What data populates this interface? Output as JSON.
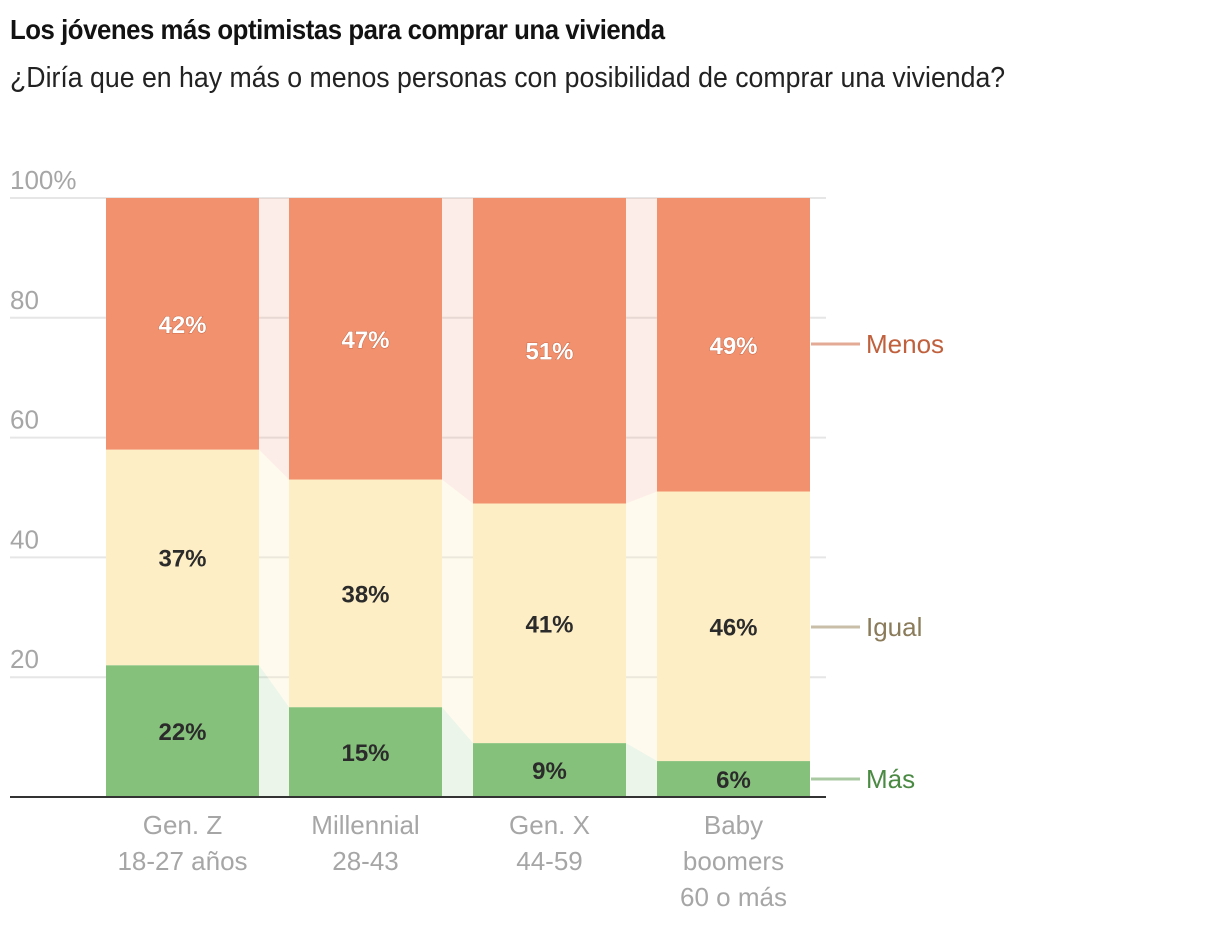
{
  "header": {
    "title": "Los jóvenes más optimistas para comprar una vivienda",
    "subtitle": "¿Diría que en hay más o menos personas con posibilidad de comprar una vivienda?"
  },
  "chart_data": {
    "type": "bar",
    "stacked": true,
    "title": "Los jóvenes más optimistas para comprar una vivienda",
    "subtitle": "¿Diría que en hay más o menos personas con posibilidad de comprar una vivienda?",
    "xlabel": "",
    "ylabel": "",
    "ylim": [
      0,
      100
    ],
    "yticks": [
      0,
      20,
      40,
      60,
      80,
      100
    ],
    "ytick_labels": [
      "",
      "20",
      "40",
      "60",
      "80",
      "100%"
    ],
    "grid": true,
    "legend_position": "right",
    "categories": [
      [
        "Gen. Z",
        "18-27 años"
      ],
      [
        "Millennial",
        "28-43"
      ],
      [
        "Gen. X",
        "44-59"
      ],
      [
        "Baby",
        "boomers",
        "60 o más"
      ]
    ],
    "series": [
      {
        "name": "Más",
        "color": "#85c17b",
        "label_color": "#4a8a43",
        "values": [
          22,
          15,
          9,
          6
        ],
        "labels": [
          "22%",
          "15%",
          "9%",
          "6%"
        ]
      },
      {
        "name": "Igual",
        "color": "#fdeec5",
        "label_color": "#8a7b5a",
        "values": [
          37,
          38,
          41,
          46
        ],
        "labels": [
          "37%",
          "38%",
          "41%",
          "46%"
        ]
      },
      {
        "name": "Menos",
        "color": "#f2916e",
        "label_color": "#c0603c",
        "values": [
          42,
          47,
          51,
          49
        ],
        "labels": [
          "42%",
          "47%",
          "51%",
          "49%"
        ]
      }
    ]
  }
}
